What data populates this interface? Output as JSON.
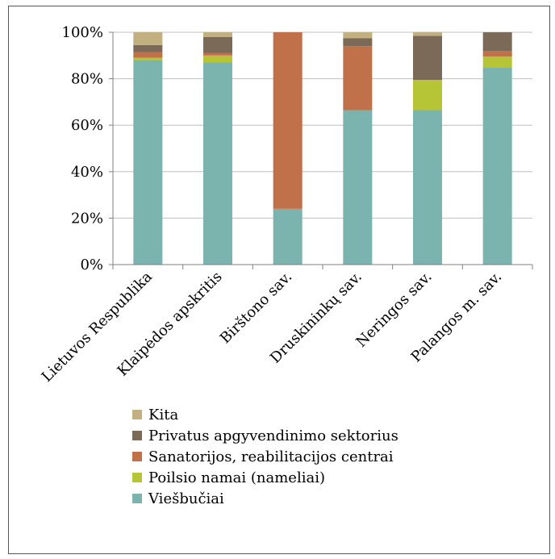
{
  "chart_data": {
    "type": "bar",
    "stacked": true,
    "percent": true,
    "categories": [
      "Lietuvos Respublika",
      "Klaipėdos apskritis",
      "Birštono sav.",
      "Druskininkų sav.",
      "Neringos sav.",
      "Palangos m. sav."
    ],
    "series": [
      {
        "name": "Viešbučiai",
        "color": "#7bb3ae",
        "values": [
          88,
          87,
          24,
          66.5,
          66.5,
          85
        ]
      },
      {
        "name": "Poilsio namai (nameliai)",
        "color": "#b5c535",
        "values": [
          1,
          3,
          0,
          0,
          13,
          4.5
        ]
      },
      {
        "name": "Sanatorijos, reabilitacijos centrai",
        "color": "#c0714a",
        "values": [
          2.5,
          1,
          76,
          27.5,
          0,
          2.5
        ]
      },
      {
        "name": "Privatus apgyvendinimo sektorius",
        "color": "#7b6a58",
        "values": [
          3,
          7,
          0,
          3.5,
          19,
          8
        ]
      },
      {
        "name": "Kita",
        "color": "#c3b080",
        "values": [
          5.5,
          2,
          0,
          2.5,
          1.5,
          0
        ]
      }
    ],
    "yticks": [
      "0%",
      "20%",
      "40%",
      "60%",
      "80%",
      "100%"
    ],
    "ylim": [
      0,
      100
    ],
    "grid": true,
    "legend_position": "bottom",
    "legend_order": [
      "Kita",
      "Privatus apgyvendinimo sektorius",
      "Sanatorijos, reabilitacijos centrai",
      "Poilsio namai (nameliai)",
      "Viešbučiai"
    ]
  }
}
